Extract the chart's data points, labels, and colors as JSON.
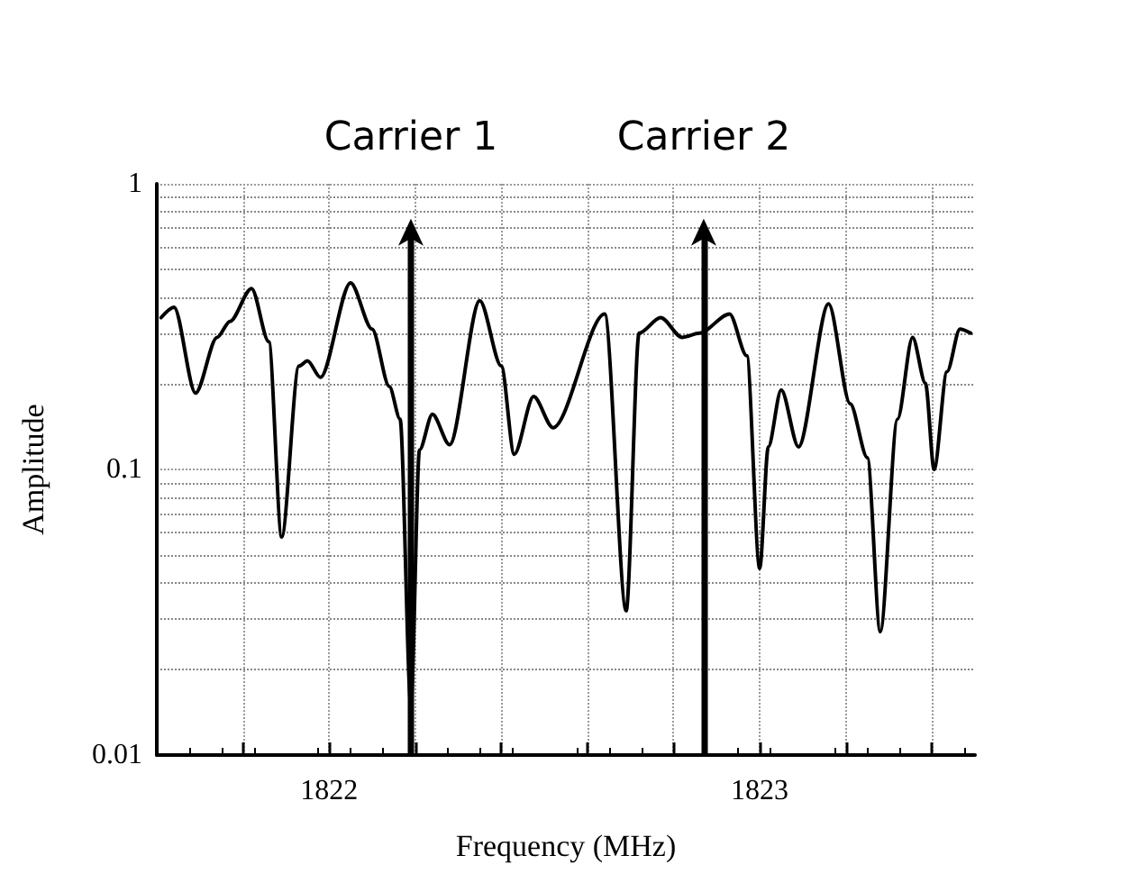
{
  "chart_data": {
    "type": "line",
    "xlabel": "Frequency (MHz)",
    "ylabel": "Amplitude",
    "log": "y",
    "grid": true,
    "marker": "none",
    "line_style": "solid",
    "xlim": [
      1821.6,
      1823.5
    ],
    "ylim": [
      0.01,
      1
    ],
    "xticks": [
      {
        "value": 1821.8,
        "label": null
      },
      1822,
      {
        "value": 1822.2,
        "label": null
      },
      {
        "value": 1822.4,
        "label": null
      },
      {
        "value": 1822.6,
        "label": null
      },
      {
        "value": 1822.8,
        "label": null
      },
      1823,
      {
        "value": 1823.2,
        "label": null
      },
      {
        "value": 1823.4,
        "label": null
      }
    ],
    "yticks": [
      0.01,
      0.1,
      1
    ],
    "series": [
      {
        "color": "#000000",
        "x": [
          1821.61,
          1821.64,
          1821.69,
          1821.74,
          1821.77,
          1821.82,
          1821.86,
          1821.89,
          1821.93,
          1821.95,
          1821.98,
          1822.05,
          1822.1,
          1822.14,
          1822.165,
          1822.19,
          1822.21,
          1822.24,
          1822.28,
          1822.35,
          1822.4,
          1822.43,
          1822.475,
          1822.52,
          1822.64,
          1822.69,
          1822.72,
          1822.77,
          1822.82,
          1822.86,
          1822.93,
          1822.97,
          1823.0,
          1823.02,
          1823.05,
          1823.09,
          1823.16,
          1823.21,
          1823.25,
          1823.28,
          1823.32,
          1823.355,
          1823.385,
          1823.405,
          1823.435,
          1823.465,
          1823.49
        ],
        "values": [
          0.34,
          0.37,
          0.185,
          0.29,
          0.33,
          0.43,
          0.28,
          0.058,
          0.23,
          0.24,
          0.21,
          0.45,
          0.31,
          0.195,
          0.15,
          0.015,
          0.117,
          0.156,
          0.122,
          0.39,
          0.23,
          0.113,
          0.18,
          0.14,
          0.35,
          0.032,
          0.3,
          0.34,
          0.29,
          0.3,
          0.35,
          0.25,
          0.045,
          0.12,
          0.19,
          0.12,
          0.38,
          0.17,
          0.11,
          0.027,
          0.15,
          0.29,
          0.2,
          0.1,
          0.22,
          0.31,
          0.3
        ]
      }
    ],
    "ref_lines": [
      {
        "axis": "x",
        "value": 1822.19,
        "label": "Carrier 1"
      },
      {
        "axis": "x",
        "value": 1822.87,
        "label": "Carrier 2"
      }
    ]
  }
}
